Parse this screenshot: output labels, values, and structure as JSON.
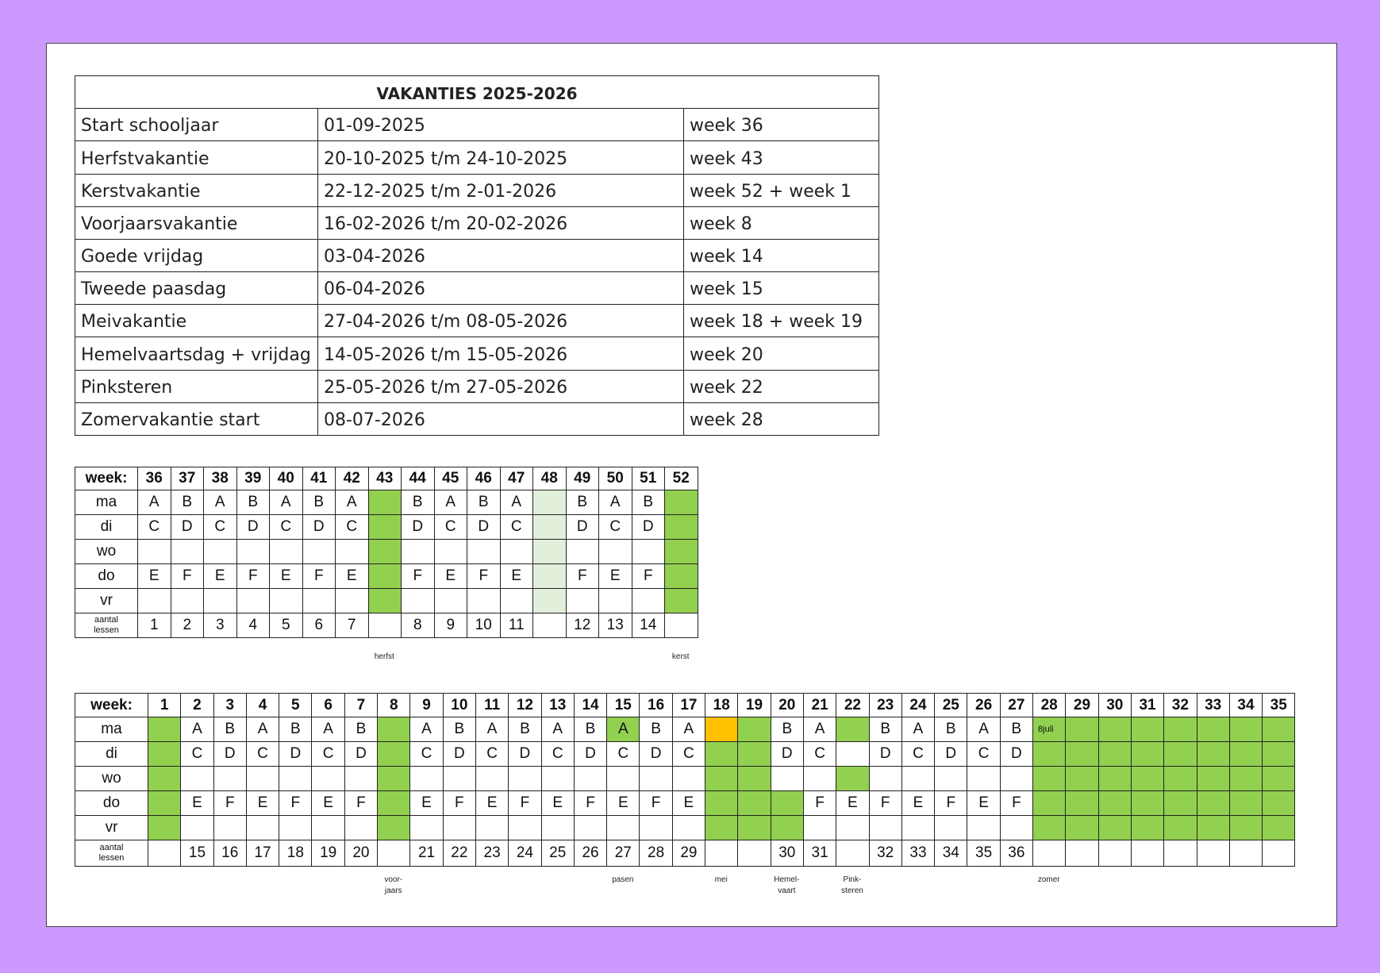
{
  "vacations": {
    "title": "VAKANTIES 2025-2026",
    "rows": [
      {
        "name": "Start schooljaar",
        "date": "01-09-2025",
        "week": "week 36"
      },
      {
        "name": "Herfstvakantie",
        "date": "20-10-2025 t/m 24-10-2025",
        "week": "week 43"
      },
      {
        "name": "Kerstvakantie",
        "date": "22-12-2025 t/m 2-01-2026",
        "week": "week 52 + week 1"
      },
      {
        "name": "Voorjaarsvakantie",
        "date": "16-02-2026 t/m 20-02-2026",
        "week": "week 8"
      },
      {
        "name": "Goede vrijdag",
        "date": "03-04-2026",
        "week": "week 14"
      },
      {
        "name": "Tweede paasdag",
        "date": "06-04-2026",
        "week": "week 15"
      },
      {
        "name": "Meivakantie",
        "date": "27-04-2026 t/m 08-05-2026",
        "week": "week 18 + week 19"
      },
      {
        "name": "Hemelvaartsdag + vrijdag",
        "date": "14-05-2026 t/m 15-05-2026",
        "week": "week 20"
      },
      {
        "name": "Pinksteren",
        "date": "25-05-2026 t/m 27-05-2026",
        "week": "week 22"
      },
      {
        "name": "Zomervakantie start",
        "date": "08-07-2026",
        "week": "week 28"
      }
    ]
  },
  "grid_labels": {
    "week": "week:",
    "days": [
      "ma",
      "di",
      "wo",
      "do",
      "vr"
    ],
    "lessons_line1": "aantal",
    "lessons_line2": "lessen"
  },
  "grid1": {
    "weeks": [
      "36",
      "37",
      "38",
      "39",
      "40",
      "41",
      "42",
      "43",
      "44",
      "45",
      "46",
      "47",
      "48",
      "49",
      "50",
      "51",
      "52"
    ],
    "ma": [
      "A",
      "B",
      "A",
      "B",
      "A",
      "B",
      "A",
      "",
      "B",
      "A",
      "B",
      "A",
      "",
      "B",
      "A",
      "B",
      ""
    ],
    "di": [
      "C",
      "D",
      "C",
      "D",
      "C",
      "D",
      "C",
      "",
      "D",
      "C",
      "D",
      "C",
      "",
      "D",
      "C",
      "D",
      ""
    ],
    "wo": [
      "",
      "",
      "",
      "",
      "",
      "",
      "",
      "",
      "",
      "",
      "",
      "",
      "",
      "",
      "",
      "",
      ""
    ],
    "do": [
      "E",
      "F",
      "E",
      "F",
      "E",
      "F",
      "E",
      "",
      "F",
      "E",
      "F",
      "E",
      "",
      "F",
      "E",
      "F",
      ""
    ],
    "vr": [
      "",
      "",
      "",
      "",
      "",
      "",
      "",
      "",
      "",
      "",
      "",
      "",
      "",
      "",
      "",
      "",
      ""
    ],
    "lessons": [
      "1",
      "2",
      "3",
      "4",
      "5",
      "6",
      "7",
      "",
      "8",
      "9",
      "10",
      "11",
      "",
      "12",
      "13",
      "14",
      ""
    ],
    "fills": {
      "7": "g",
      "12": "lg",
      "16": "g"
    },
    "notes": [
      {
        "text": "herfst",
        "col": 7
      },
      {
        "text": "kerst",
        "col": 16
      }
    ]
  },
  "grid2": {
    "weeks": [
      "1",
      "2",
      "3",
      "4",
      "5",
      "6",
      "7",
      "8",
      "9",
      "10",
      "11",
      "12",
      "13",
      "14",
      "15",
      "16",
      "17",
      "18",
      "19",
      "20",
      "21",
      "22",
      "23",
      "24",
      "25",
      "26",
      "27",
      "28",
      "29",
      "30",
      "31",
      "32",
      "33",
      "34",
      "35"
    ],
    "ma": [
      "",
      "A",
      "B",
      "A",
      "B",
      "A",
      "B",
      "",
      "A",
      "B",
      "A",
      "B",
      "A",
      "B",
      "A",
      "B",
      "A",
      "",
      "",
      "B",
      "A",
      "",
      "B",
      "A",
      "B",
      "A",
      "B",
      "8juli",
      "",
      "",
      "",
      "",
      "",
      "",
      ""
    ],
    "di": [
      "",
      "C",
      "D",
      "C",
      "D",
      "C",
      "D",
      "",
      "C",
      "D",
      "C",
      "D",
      "C",
      "D",
      "C",
      "D",
      "C",
      "",
      "",
      "D",
      "C",
      "",
      "D",
      "C",
      "D",
      "C",
      "D",
      "",
      "",
      "",
      "",
      "",
      "",
      "",
      ""
    ],
    "wo": [
      "",
      "",
      "",
      "",
      "",
      "",
      "",
      "",
      "",
      "",
      "",
      "",
      "",
      "",
      "",
      "",
      "",
      "",
      "",
      "",
      "",
      "",
      "",
      "",
      "",
      "",
      "",
      "",
      "",
      "",
      "",
      "",
      "",
      "",
      ""
    ],
    "do": [
      "",
      "E",
      "F",
      "E",
      "F",
      "E",
      "F",
      "",
      "E",
      "F",
      "E",
      "F",
      "E",
      "F",
      "E",
      "F",
      "E",
      "",
      "",
      "",
      "F",
      "E",
      "F",
      "E",
      "F",
      "E",
      "F",
      "",
      "",
      "",
      "",
      "",
      "",
      "",
      ""
    ],
    "vr": [
      "",
      "",
      "",
      "",
      "",
      "",
      "",
      "",
      "",
      "",
      "",
      "",
      "",
      "",
      "",
      "",
      "",
      "",
      "",
      "",
      "",
      "",
      "",
      "",
      "",
      "",
      "",
      "",
      "",
      "",
      "",
      "",
      "",
      "",
      ""
    ],
    "lessons": [
      "",
      "15",
      "16",
      "17",
      "18",
      "19",
      "20",
      "",
      "21",
      "22",
      "23",
      "24",
      "25",
      "26",
      "27",
      "28",
      "29",
      "",
      "",
      "30",
      "31",
      "",
      "32",
      "33",
      "34",
      "35",
      "36",
      "",
      "",
      "",
      "",
      "",
      "",
      "",
      ""
    ],
    "notes": [
      {
        "text": "voor-\njaars",
        "col": 7
      },
      {
        "text": "pasen",
        "col": 14
      },
      {
        "text": "mei",
        "col": 17
      },
      {
        "text": "Hemel-\nvaart",
        "col": 19
      },
      {
        "text": "Pink-\nsteren",
        "col": 21
      },
      {
        "text": "zomer",
        "col": 27
      }
    ]
  },
  "colors": {
    "holiday": "#92d050",
    "holiday_light": "#e2efda",
    "highlight": "#ffc000"
  }
}
